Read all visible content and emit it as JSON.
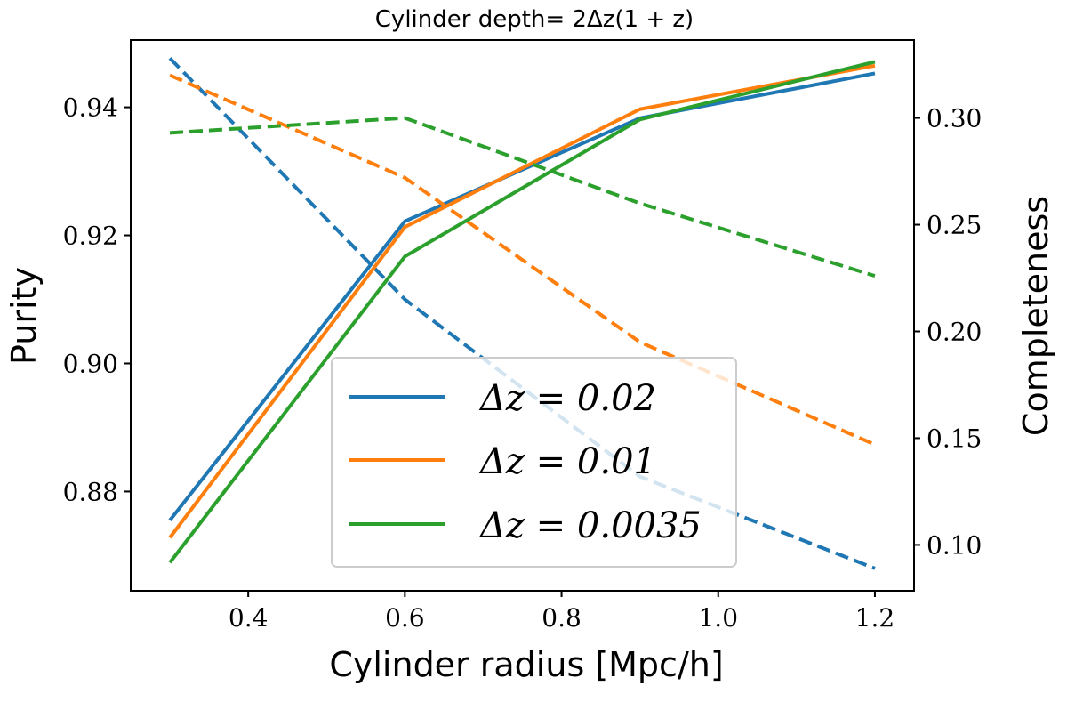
{
  "chart_data": {
    "type": "line",
    "title": "Cylinder depth= 2Δz(1 + z)",
    "xlabel": "Cylinder radius [Mpc/h]",
    "ylabel_left": "Purity",
    "ylabel_right": "Completeness",
    "xlim": [
      0.25,
      1.25
    ],
    "ylim_left": [
      0.8645,
      0.9505
    ],
    "ylim_right": [
      0.0785,
      0.3365
    ],
    "xticks": [
      "0.4",
      "0.6",
      "0.8",
      "1.0",
      "1.2"
    ],
    "xtick_values": [
      0.4,
      0.6,
      0.8,
      1.0,
      1.2
    ],
    "yticks_left": [
      "0.88",
      "0.90",
      "0.92",
      "0.94"
    ],
    "ytick_values_left": [
      0.88,
      0.9,
      0.92,
      0.94
    ],
    "yticks_right": [
      "0.10",
      "0.15",
      "0.20",
      "0.25",
      "0.30"
    ],
    "ytick_values_right": [
      0.1,
      0.15,
      0.2,
      0.25,
      0.3
    ],
    "x": [
      0.3,
      0.6,
      0.9,
      1.2
    ],
    "series": [
      {
        "name": "Δz = 0.02",
        "color": "#1f77b4",
        "purity": [
          0.8755,
          0.9222,
          0.9383,
          0.9453
        ],
        "completeness": [
          0.328,
          0.215,
          0.132,
          0.089
        ]
      },
      {
        "name": "Δz = 0.01",
        "color": "#ff7f0e",
        "purity": [
          0.8728,
          0.9213,
          0.9397,
          0.9465
        ],
        "completeness": [
          0.32,
          0.272,
          0.195,
          0.147
        ]
      },
      {
        "name": "Δz = 0.0035",
        "color": "#2ca02c",
        "purity": [
          0.8689,
          0.9167,
          0.9381,
          0.9471
        ],
        "completeness": [
          0.293,
          0.3,
          0.26,
          0.226
        ]
      }
    ],
    "legend": "lower center",
    "grid": false
  }
}
